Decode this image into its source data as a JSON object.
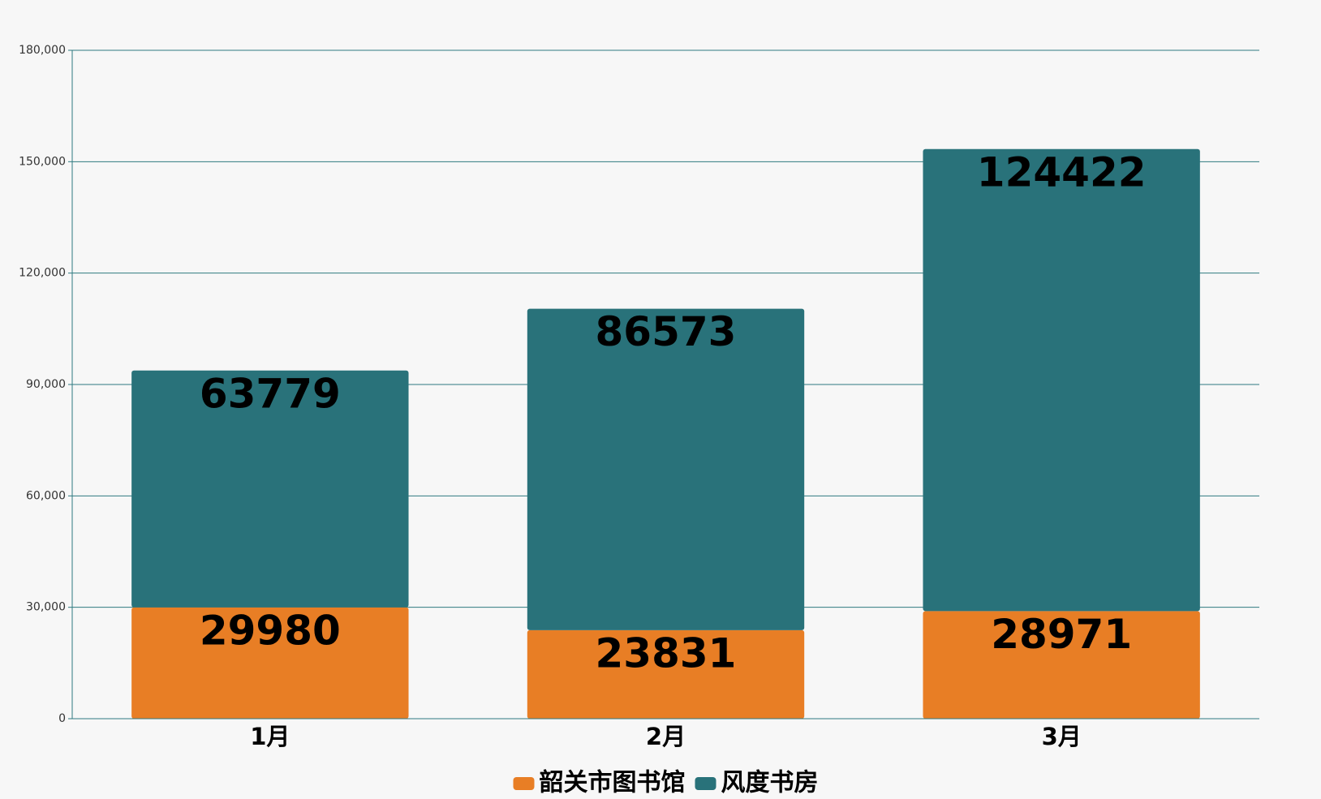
{
  "chart_data": {
    "type": "stacked_bar",
    "categories": [
      "1月",
      "2月",
      "3月"
    ],
    "series": [
      {
        "name": "韶关市图书馆",
        "color": "#e87e25",
        "values": [
          29980,
          23831,
          28971
        ]
      },
      {
        "name": "风度书房",
        "color": "#29727a",
        "values": [
          63779,
          86573,
          124422
        ]
      }
    ],
    "ylim": [
      0,
      180000
    ],
    "yticks": [
      0,
      {
        "value": 30000,
        "label": "30,000"
      },
      {
        "value": 60000,
        "label": "60,000"
      },
      {
        "value": 90000,
        "label": "90,000"
      },
      {
        "value": 120000,
        "label": "120,000"
      },
      {
        "value": 150000,
        "label": "150,000"
      },
      {
        "value": 180000,
        "label": "180,000"
      }
    ],
    "grid": true,
    "legend": "bottom"
  }
}
